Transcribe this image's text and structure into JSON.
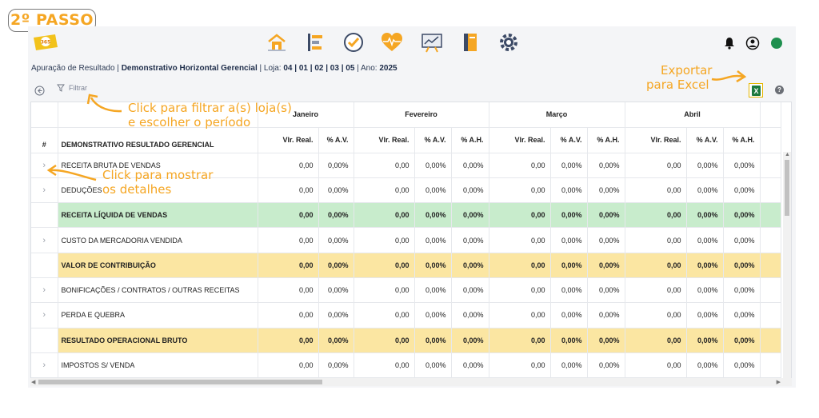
{
  "step_badge": "2º PASSO",
  "app": {
    "logo_text": "365",
    "nav_icons": [
      "home-icon",
      "dashboard-icon",
      "check-circle-icon",
      "heart-pulse-icon",
      "chart-board-icon",
      "notebook-icon",
      "cog-network-icon"
    ],
    "right_icons": [
      "bell-icon",
      "user-account-icon",
      "status-dot-icon"
    ],
    "status_color": "#1e8f4e"
  },
  "breadcrumb": {
    "section": "Apuração de Resultado",
    "sep1": " | ",
    "report": "Demonstrativo Horizontal Gerencial",
    "sep2": " | Loja: ",
    "stores": "04 | 01 | 02 | 03 | 05",
    "sep3": " | Ano: ",
    "year": "2025"
  },
  "toolbar": {
    "filter_label": "Filtrar",
    "excel_label": "X",
    "help_label": "?"
  },
  "table": {
    "hash_header": "#",
    "desc_header": "DEMONSTRATIVO RESULTADO GERENCIAL",
    "months": [
      "Janeiro",
      "Fevereiro",
      "Março",
      "Abril"
    ],
    "sub_jan": [
      "Vlr. Real.",
      "% A.V."
    ],
    "sub_other": [
      "Vlr. Real.",
      "% A.V.",
      "% A.H."
    ],
    "rows": [
      {
        "label": "RECEITA BRUTA DE VENDAS",
        "style": "normal",
        "expand": true,
        "vals": [
          "0,00",
          "0,00%",
          "0,00",
          "0,00%",
          "0,00%",
          "0,00",
          "0,00%",
          "0,00%",
          "0,00",
          "0,00%",
          "0,00%"
        ]
      },
      {
        "label": "DEDUÇÕES",
        "style": "normal",
        "expand": true,
        "vals": [
          "0,00",
          "0,00%",
          "0,00",
          "0,00%",
          "0,00%",
          "0,00",
          "0,00%",
          "0,00%",
          "0,00",
          "0,00%",
          "0,00%"
        ]
      },
      {
        "label": "RECEITA LÍQUIDA DE VENDAS",
        "style": "green",
        "expand": false,
        "vals": [
          "0,00",
          "0,00%",
          "0,00",
          "0,00%",
          "0,00%",
          "0,00",
          "0,00%",
          "0,00%",
          "0,00",
          "0,00%",
          "0,00%"
        ]
      },
      {
        "label": "CUSTO DA MERCADORIA VENDIDA",
        "style": "normal",
        "expand": true,
        "vals": [
          "0,00",
          "0,00%",
          "0,00",
          "0,00%",
          "0,00%",
          "0,00",
          "0,00%",
          "0,00%",
          "0,00",
          "0,00%",
          "0,00%"
        ]
      },
      {
        "label": "VALOR DE CONTRIBUIÇÃO",
        "style": "yellow",
        "expand": false,
        "vals": [
          "0,00",
          "0,00%",
          "0,00",
          "0,00%",
          "0,00%",
          "0,00",
          "0,00%",
          "0,00%",
          "0,00",
          "0,00%",
          "0,00%"
        ]
      },
      {
        "label": "BONIFICAÇÕES / CONTRATOS / OUTRAS RECEITAS",
        "style": "normal",
        "expand": true,
        "vals": [
          "0,00",
          "0,00%",
          "0,00",
          "0,00%",
          "0,00%",
          "0,00",
          "0,00%",
          "0,00%",
          "0,00",
          "0,00%",
          "0,00%"
        ]
      },
      {
        "label": "PERDA E QUEBRA",
        "style": "normal",
        "expand": true,
        "vals": [
          "0,00",
          "0,00%",
          "0,00",
          "0,00%",
          "0,00%",
          "0,00",
          "0,00%",
          "0,00%",
          "0,00",
          "0,00%",
          "0,00%"
        ]
      },
      {
        "label": "RESULTADO OPERACIONAL BRUTO",
        "style": "yellow",
        "expand": false,
        "vals": [
          "0,00",
          "0,00%",
          "0,00",
          "0,00%",
          "0,00%",
          "0,00",
          "0,00%",
          "0,00%",
          "0,00",
          "0,00%",
          "0,00%"
        ]
      },
      {
        "label": "IMPOSTOS S/ VENDA",
        "style": "normal",
        "expand": true,
        "vals": [
          "0,00",
          "0,00%",
          "0,00",
          "0,00%",
          "0,00%",
          "0,00",
          "0,00%",
          "0,00%",
          "0,00",
          "0,00%",
          "0,00%"
        ]
      }
    ]
  },
  "annotations": {
    "export_line1": "Exportar",
    "export_line2": "para Excel",
    "filter_line1": "Click para filtrar a(s) loja(s)",
    "filter_line2": "e escolher o período",
    "details_line1": "Click para mostrar",
    "details_line2": "os detalhes",
    "color": "#f5a623"
  }
}
